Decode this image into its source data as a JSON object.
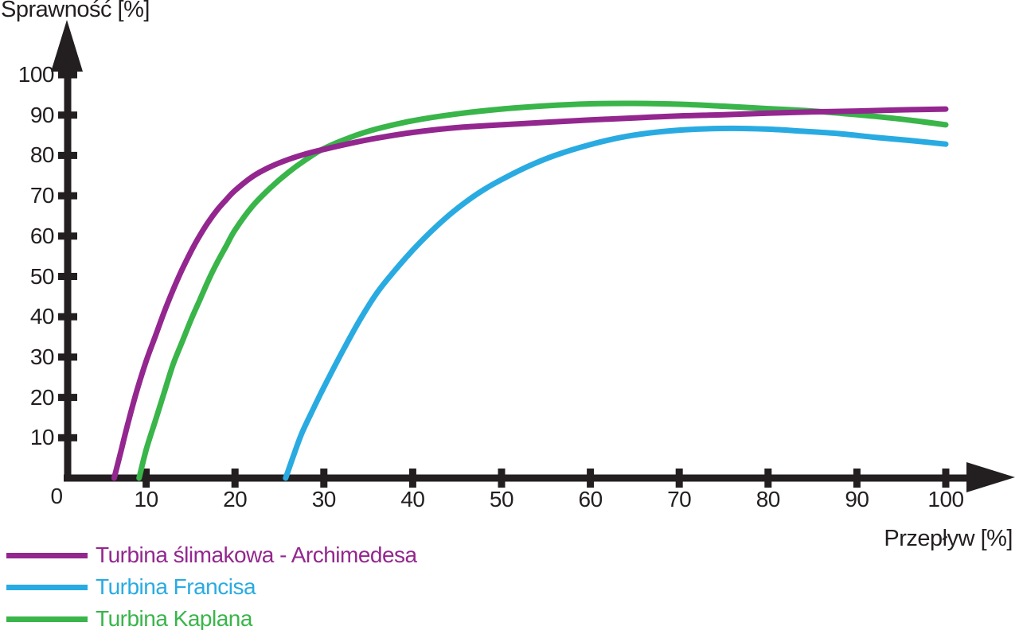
{
  "chart_data": {
    "type": "line",
    "title": "",
    "xlabel": "Przepływ [%]",
    "ylabel": "Sprawność [%]",
    "origin_label": "0",
    "xlim": [
      0,
      108
    ],
    "ylim": [
      0,
      112
    ],
    "x_ticks": [
      10,
      20,
      30,
      40,
      50,
      60,
      70,
      80,
      90,
      100
    ],
    "y_ticks": [
      10,
      20,
      30,
      40,
      50,
      60,
      70,
      80,
      90,
      100
    ],
    "grid": false,
    "legend_position": "below-left",
    "axis_color": "#231f20",
    "background_color": "#ffffff",
    "series": [
      {
        "name": "Turbina ślimakowa - Archimedesa",
        "color": "#93278f",
        "points": [
          [
            6.4,
            0
          ],
          [
            7.2,
            7
          ],
          [
            8,
            14
          ],
          [
            9,
            22
          ],
          [
            10,
            29
          ],
          [
            11,
            35
          ],
          [
            12,
            41
          ],
          [
            13,
            46.5
          ],
          [
            14,
            51.5
          ],
          [
            15,
            56
          ],
          [
            16,
            60
          ],
          [
            17,
            63.5
          ],
          [
            18,
            66.5
          ],
          [
            19,
            69
          ],
          [
            20,
            71.3
          ],
          [
            22,
            74.8
          ],
          [
            24,
            77.2
          ],
          [
            26,
            79
          ],
          [
            28,
            80.4
          ],
          [
            30,
            81.5
          ],
          [
            33,
            83
          ],
          [
            36,
            84.3
          ],
          [
            40,
            85.7
          ],
          [
            45,
            86.9
          ],
          [
            50,
            87.6
          ],
          [
            55,
            88.2
          ],
          [
            60,
            88.8
          ],
          [
            65,
            89.3
          ],
          [
            70,
            89.8
          ],
          [
            75,
            90.1
          ],
          [
            80,
            90.5
          ],
          [
            85,
            90.8
          ],
          [
            90,
            91
          ],
          [
            95,
            91.3
          ],
          [
            100,
            91.5
          ]
        ]
      },
      {
        "name": "Turbina Francisa",
        "color": "#29abe2",
        "points": [
          [
            25.7,
            0
          ],
          [
            26.5,
            5
          ],
          [
            27.5,
            11
          ],
          [
            29,
            18
          ],
          [
            30,
            22.5
          ],
          [
            32,
            31
          ],
          [
            34,
            39
          ],
          [
            36,
            46
          ],
          [
            38,
            51.5
          ],
          [
            40,
            56.5
          ],
          [
            42,
            61
          ],
          [
            44,
            65
          ],
          [
            46,
            68.5
          ],
          [
            48,
            71.5
          ],
          [
            50,
            74
          ],
          [
            53,
            77.3
          ],
          [
            56,
            80
          ],
          [
            60,
            82.7
          ],
          [
            64,
            84.7
          ],
          [
            68,
            85.9
          ],
          [
            72,
            86.5
          ],
          [
            76,
            86.7
          ],
          [
            80,
            86.5
          ],
          [
            84,
            86
          ],
          [
            88,
            85.4
          ],
          [
            92,
            84.5
          ],
          [
            96,
            83.7
          ],
          [
            100,
            82.8
          ]
        ]
      },
      {
        "name": "Turbina Kaplana",
        "color": "#39b54a",
        "points": [
          [
            9.2,
            0
          ],
          [
            10,
            7
          ],
          [
            11,
            14
          ],
          [
            12,
            21
          ],
          [
            13,
            28
          ],
          [
            14,
            33.5
          ],
          [
            15,
            39
          ],
          [
            16,
            44
          ],
          [
            17,
            49
          ],
          [
            18,
            53.5
          ],
          [
            19,
            57.5
          ],
          [
            20,
            61.5
          ],
          [
            22,
            67.5
          ],
          [
            24,
            72
          ],
          [
            26,
            75.8
          ],
          [
            28,
            79
          ],
          [
            30,
            81.7
          ],
          [
            33,
            84.5
          ],
          [
            36,
            86.6
          ],
          [
            40,
            88.6
          ],
          [
            45,
            90.3
          ],
          [
            50,
            91.5
          ],
          [
            55,
            92.3
          ],
          [
            60,
            92.8
          ],
          [
            65,
            92.9
          ],
          [
            70,
            92.7
          ],
          [
            75,
            92.2
          ],
          [
            80,
            91.6
          ],
          [
            85,
            91
          ],
          [
            90,
            90.1
          ],
          [
            95,
            89
          ],
          [
            100,
            87.6
          ]
        ]
      }
    ]
  }
}
